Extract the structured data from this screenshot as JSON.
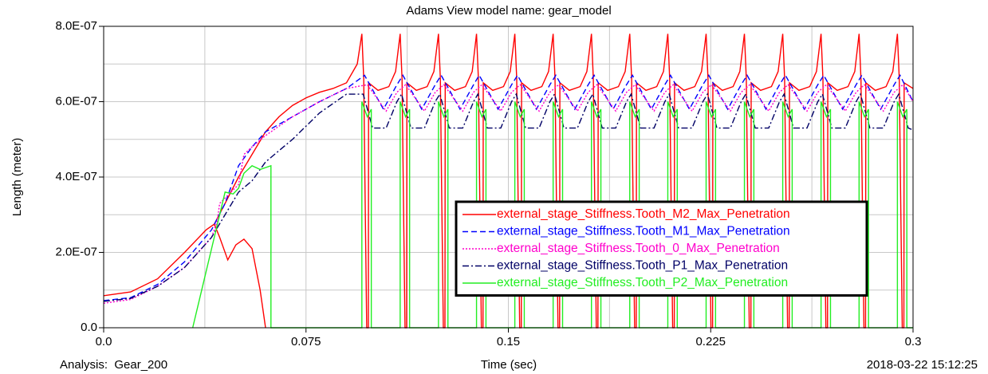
{
  "chart_data": {
    "type": "line",
    "title": "Adams View model name: gear_model",
    "ylabel": "Length (meter)",
    "xlabel": "Time (sec)",
    "footer_left": "Analysis:  Gear_200",
    "footer_right": "2018-03-22 15:12:25",
    "xlim": [
      0,
      0.3
    ],
    "ylim": [
      0,
      8e-07
    ],
    "xticks": [
      {
        "value": 0,
        "label": "0.0"
      },
      0.075,
      0.15,
      0.225,
      0.3
    ],
    "yticks": [
      {
        "value": 0,
        "label": "0.0"
      },
      {
        "value": 2e-07,
        "label": "2.0E-07"
      },
      {
        "value": 4e-07,
        "label": "4.0E-07"
      },
      {
        "value": 6e-07,
        "label": "6.0E-07"
      },
      {
        "value": 8e-07,
        "label": "8.0E-07"
      }
    ],
    "xminor": [
      0.0375,
      0.1125,
      0.1875,
      0.2625
    ],
    "yminor": [
      1e-07,
      3e-07,
      5e-07,
      7e-07
    ],
    "grid": true,
    "legend": "center right",
    "series": [
      {
        "name": "external_stage_Stiffness.Tooth_M2_Max_Penetration",
        "color": "#ff0000",
        "style": "solid",
        "x": [
          0.041,
          0.043,
          0.046,
          0.049,
          0.052,
          0.055,
          0.058,
          0.06,
          null,
          0,
          0.01,
          0.02,
          0.03,
          0.038,
          0.041,
          0.045,
          0.05,
          0.055,
          0.06,
          0.065,
          0.07,
          0.075,
          0.08,
          0.085,
          0.09,
          0.094,
          0.0957,
          0.0964,
          0.0969,
          0.0975,
          0.0981,
          0.0982,
          0.1017,
          0.1057,
          0.1082,
          0.1099,
          0.1106,
          0.1111,
          0.1117,
          0.1123,
          0.1124,
          0.1159,
          0.1199,
          0.1224,
          0.1241,
          0.1248,
          0.1253,
          0.1259,
          0.1265,
          0.1266,
          0.1301,
          0.1341,
          0.1366,
          0.1382,
          0.1389,
          0.1394,
          0.14,
          0.1406,
          0.1407,
          0.1442,
          0.1482,
          0.1507,
          0.1524,
          0.1531,
          0.1536,
          0.1542,
          0.1548,
          0.1549,
          0.1584,
          0.1624,
          0.1649,
          0.1666,
          0.1673,
          0.1678,
          0.1684,
          0.169,
          0.1691,
          0.1726,
          0.1766,
          0.1791,
          0.1808,
          0.1815,
          0.182,
          0.1826,
          0.1832,
          0.1833,
          0.1868,
          0.1908,
          0.1933,
          0.195,
          0.1957,
          0.1962,
          0.1968,
          0.1974,
          0.1975,
          0.201,
          0.205,
          0.2075,
          0.2091,
          0.2098,
          0.2103,
          0.2109,
          0.2115,
          0.2116,
          0.2151,
          0.2191,
          0.2216,
          0.2233,
          0.224,
          0.2245,
          0.2251,
          0.2257,
          0.2258,
          0.2293,
          0.2333,
          0.2358,
          0.2375,
          0.2382,
          0.2387,
          0.2393,
          0.2399,
          0.24,
          0.2435,
          0.2475,
          0.25,
          0.2517,
          0.2524,
          0.2529,
          0.2535,
          0.2541,
          0.2542,
          0.2577,
          0.2617,
          0.2642,
          0.2659,
          0.2666,
          0.2671,
          0.2677,
          0.2683,
          0.2684,
          0.2719,
          0.2759,
          0.2784,
          0.28,
          0.2807,
          0.2812,
          0.2818,
          0.2824,
          0.2825,
          0.286,
          0.29,
          0.2925,
          0.2942,
          0.2949,
          0.2954,
          0.296,
          0.2966,
          0.2967,
          0.3
        ],
        "values": [
          2.75e-07,
          2.4e-07,
          1.8e-07,
          2.2e-07,
          2.35e-07,
          2.1e-07,
          1e-07,
          0,
          null,
          8.5e-08,
          9.5e-08,
          1.3e-07,
          2e-07,
          2.6e-07,
          2.75e-07,
          3.3e-07,
          4e-07,
          4.6e-07,
          5.2e-07,
          5.6e-07,
          5.9e-07,
          6.1e-07,
          6.25e-07,
          6.35e-07,
          6.5e-07,
          7e-07,
          7.8e-07,
          6.6e-07,
          3.5e-07,
          0,
          0,
          6.5e-07,
          6.3e-07,
          6.4e-07,
          6.8e-07,
          7.8e-07,
          6.6e-07,
          3.5e-07,
          0,
          0,
          6.5e-07,
          6.3e-07,
          6.4e-07,
          6.8e-07,
          7.8e-07,
          6.6e-07,
          3.5e-07,
          0,
          0,
          6.5e-07,
          6.3e-07,
          6.4e-07,
          6.8e-07,
          7.8e-07,
          6.6e-07,
          3.5e-07,
          0,
          0,
          6.5e-07,
          6.3e-07,
          6.4e-07,
          6.8e-07,
          7.8e-07,
          6.6e-07,
          3.5e-07,
          0,
          0,
          6.5e-07,
          6.3e-07,
          6.4e-07,
          6.8e-07,
          7.8e-07,
          6.6e-07,
          3.5e-07,
          0,
          0,
          6.5e-07,
          6.3e-07,
          6.4e-07,
          6.8e-07,
          7.8e-07,
          6.6e-07,
          3.5e-07,
          0,
          0,
          6.5e-07,
          6.3e-07,
          6.4e-07,
          6.8e-07,
          7.8e-07,
          6.6e-07,
          3.5e-07,
          0,
          0,
          6.5e-07,
          6.3e-07,
          6.4e-07,
          6.8e-07,
          7.8e-07,
          6.6e-07,
          3.5e-07,
          0,
          0,
          6.5e-07,
          6.3e-07,
          6.4e-07,
          6.8e-07,
          7.8e-07,
          6.6e-07,
          3.5e-07,
          0,
          0,
          6.5e-07,
          6.3e-07,
          6.4e-07,
          6.8e-07,
          7.8e-07,
          6.6e-07,
          3.5e-07,
          0,
          0,
          6.5e-07,
          6.3e-07,
          6.4e-07,
          6.8e-07,
          7.8e-07,
          6.6e-07,
          3.5e-07,
          0,
          0,
          6.5e-07,
          6.3e-07,
          6.4e-07,
          6.8e-07,
          7.8e-07,
          6.6e-07,
          3.5e-07,
          0,
          0,
          6.5e-07,
          6.3e-07,
          6.4e-07,
          6.8e-07,
          7.8e-07,
          6.6e-07,
          3.5e-07,
          0,
          0,
          6.5e-07,
          6.3e-07,
          6.4e-07,
          6.8e-07,
          7.8e-07,
          6.6e-07,
          3.5e-07,
          0,
          0,
          6.5e-07,
          6.35e-07
        ]
      },
      {
        "name": "external_stage_Stiffness.Tooth_M1_Max_Penetration",
        "color": "#0000ff",
        "style": "dashed",
        "x": [
          0,
          0.01,
          0.02,
          0.03,
          0.04,
          0.045,
          0.05,
          0.055,
          0.06,
          0.07,
          0.08,
          0.09,
          0.0967,
          0.1037,
          0.1087,
          0.1109,
          0.1179,
          0.1229,
          0.1251,
          0.1321,
          0.1371,
          0.1392,
          0.1462,
          0.1512,
          0.1534,
          0.1604,
          0.1654,
          0.1676,
          0.1746,
          0.1796,
          0.1818,
          0.1888,
          0.1938,
          0.196,
          0.203,
          0.208,
          0.2101,
          0.2171,
          0.2221,
          0.2243,
          0.2313,
          0.2363,
          0.2385,
          0.2455,
          0.2505,
          0.2527,
          0.2597,
          0.2647,
          0.2669,
          0.2739,
          0.2789,
          0.281,
          0.288,
          0.293,
          0.2952,
          0.3
        ],
        "values": [
          7.2e-08,
          8e-08,
          1.15e-07,
          1.75e-07,
          2.6e-07,
          3.3e-07,
          4.3e-07,
          4.8e-07,
          5.2e-07,
          5.6e-07,
          6e-07,
          6.35e-07,
          6.7e-07,
          5.8e-07,
          6.45e-07,
          6.7e-07,
          5.8e-07,
          6.45e-07,
          6.7e-07,
          5.8e-07,
          6.45e-07,
          6.7e-07,
          5.8e-07,
          6.45e-07,
          6.7e-07,
          5.8e-07,
          6.45e-07,
          6.7e-07,
          5.8e-07,
          6.45e-07,
          6.7e-07,
          5.8e-07,
          6.45e-07,
          6.7e-07,
          5.8e-07,
          6.45e-07,
          6.7e-07,
          5.8e-07,
          6.45e-07,
          6.7e-07,
          5.8e-07,
          6.45e-07,
          6.7e-07,
          5.8e-07,
          6.45e-07,
          6.7e-07,
          5.8e-07,
          6.45e-07,
          6.7e-07,
          5.8e-07,
          6.45e-07,
          6.7e-07,
          5.8e-07,
          6.45e-07,
          6.7e-07,
          6e-07
        ]
      },
      {
        "name": "external_stage_Stiffness.Tooth_0_Max_Penetration",
        "color": "#ff00cc",
        "style": "dotted",
        "x": [
          0,
          0.01,
          0.02,
          0.03,
          0.04,
          0.042,
          0.043,
          0.05,
          0.052,
          0.055,
          0.06,
          0.07,
          0.08,
          0.09,
          0.0977,
          0.1047,
          0.1087,
          0.1119,
          0.1189,
          0.1229,
          0.1261,
          0.1331,
          0.1371,
          0.1402,
          0.1472,
          0.1512,
          0.1544,
          0.1614,
          0.1654,
          0.1686,
          0.1756,
          0.1796,
          0.1828,
          0.1898,
          0.1938,
          0.197,
          0.204,
          0.208,
          0.2111,
          0.2181,
          0.2221,
          0.2253,
          0.2323,
          0.2363,
          0.2395,
          0.2465,
          0.2505,
          0.2537,
          0.2607,
          0.2647,
          0.2679,
          0.2749,
          0.2789,
          0.282,
          0.289,
          0.293,
          0.2962,
          0.3
        ],
        "values": [
          6.5e-08,
          7.5e-08,
          1.1e-07,
          1.6e-07,
          2.4e-07,
          2.8e-07,
          3.3e-07,
          3.8e-07,
          4.6e-07,
          4.8e-07,
          5.1e-07,
          5.6e-07,
          6e-07,
          6.35e-07,
          6.45e-07,
          5.75e-07,
          6.25e-07,
          6.45e-07,
          5.75e-07,
          6.25e-07,
          6.45e-07,
          5.75e-07,
          6.25e-07,
          6.45e-07,
          5.75e-07,
          6.25e-07,
          6.45e-07,
          5.75e-07,
          6.25e-07,
          6.45e-07,
          5.75e-07,
          6.25e-07,
          6.45e-07,
          5.75e-07,
          6.25e-07,
          6.45e-07,
          5.75e-07,
          6.25e-07,
          6.45e-07,
          5.75e-07,
          6.25e-07,
          6.45e-07,
          5.75e-07,
          6.25e-07,
          6.45e-07,
          5.75e-07,
          6.25e-07,
          6.45e-07,
          5.75e-07,
          6.25e-07,
          6.45e-07,
          5.75e-07,
          6.25e-07,
          6.45e-07,
          5.75e-07,
          6.25e-07,
          6.45e-07,
          6e-07
        ]
      },
      {
        "name": "external_stage_Stiffness.Tooth_P1_Max_Penetration",
        "color": "#000066",
        "style": "dashdot",
        "x": [
          0,
          0.01,
          0.02,
          0.03,
          0.04,
          0.045,
          0.05,
          0.055,
          0.06,
          0.07,
          0.08,
          0.09,
          0.0962,
          0.0997,
          0.1047,
          0.1087,
          0.1104,
          0.1139,
          0.1189,
          0.1229,
          0.1246,
          0.1281,
          0.1331,
          0.1371,
          0.1387,
          0.1422,
          0.1472,
          0.1512,
          0.1529,
          0.1564,
          0.1614,
          0.1654,
          0.1671,
          0.1706,
          0.1756,
          0.1796,
          0.1813,
          0.1848,
          0.1898,
          0.1938,
          0.1955,
          0.199,
          0.204,
          0.208,
          0.2096,
          0.2131,
          0.2181,
          0.2221,
          0.2238,
          0.2273,
          0.2323,
          0.2363,
          0.238,
          0.2415,
          0.2465,
          0.2505,
          0.2522,
          0.2557,
          0.2607,
          0.2647,
          0.2664,
          0.2699,
          0.2749,
          0.2789,
          0.2805,
          0.284,
          0.289,
          0.293,
          0.2947,
          0.2982,
          0.3
        ],
        "values": [
          7e-08,
          7.8e-08,
          1.1e-07,
          1.6e-07,
          2.4e-07,
          3e-07,
          3.6e-07,
          3.9e-07,
          4.4e-07,
          5e-07,
          5.7e-07,
          6.2e-07,
          6.2e-07,
          5.3e-07,
          5.3e-07,
          6e-07,
          6.2e-07,
          5.3e-07,
          5.3e-07,
          6e-07,
          6.2e-07,
          5.3e-07,
          5.3e-07,
          6e-07,
          6.2e-07,
          5.3e-07,
          5.3e-07,
          6e-07,
          6.2e-07,
          5.3e-07,
          5.3e-07,
          6e-07,
          6.2e-07,
          5.3e-07,
          5.3e-07,
          6e-07,
          6.2e-07,
          5.3e-07,
          5.3e-07,
          6e-07,
          6.2e-07,
          5.3e-07,
          5.3e-07,
          6e-07,
          6.2e-07,
          5.3e-07,
          5.3e-07,
          6e-07,
          6.2e-07,
          5.3e-07,
          5.3e-07,
          6e-07,
          6.2e-07,
          5.3e-07,
          5.3e-07,
          6e-07,
          6.2e-07,
          5.3e-07,
          5.3e-07,
          6e-07,
          6.2e-07,
          5.3e-07,
          5.3e-07,
          6e-07,
          6.2e-07,
          5.3e-07,
          5.3e-07,
          6e-07,
          6.2e-07,
          5.3e-07,
          5.25e-07
        ]
      },
      {
        "name": "external_stage_Stiffness.Tooth_P2_Max_Penetration",
        "color": "#22ee22",
        "style": "solid",
        "x": [
          0.033,
          0.045,
          0.048,
          0.05,
          0.052,
          0.055,
          0.058,
          0.062,
          0.062,
          0.0957,
          0.0957,
          0.0977,
          0.0992,
          0.0992,
          0.1099,
          0.1099,
          0.1119,
          0.1134,
          0.1134,
          0.1241,
          0.1241,
          0.1261,
          0.1276,
          0.1276,
          0.1382,
          0.1382,
          0.1402,
          0.1417,
          0.1417,
          0.1524,
          0.1524,
          0.1544,
          0.1559,
          0.1559,
          0.1666,
          0.1666,
          0.1686,
          0.1701,
          0.1701,
          0.1808,
          0.1808,
          0.1828,
          0.1843,
          0.1843,
          0.195,
          0.195,
          0.197,
          0.1985,
          0.1985,
          0.2091,
          0.2091,
          0.2111,
          0.2126,
          0.2126,
          0.2233,
          0.2233,
          0.2253,
          0.2268,
          0.2268,
          0.2375,
          0.2375,
          0.2395,
          0.241,
          0.241,
          0.2517,
          0.2517,
          0.2537,
          0.2552,
          0.2552,
          0.2659,
          0.2659,
          0.2679,
          0.2694,
          0.2694,
          0.28,
          0.28,
          0.282,
          0.2835,
          0.2835,
          0.2942,
          0.2942,
          0.2962,
          0.2977,
          0.2977,
          0.3
        ],
        "values": [
          0,
          3.6e-07,
          3.55e-07,
          3.7e-07,
          4.1e-07,
          4.3e-07,
          4.2e-07,
          4.3e-07,
          0,
          0,
          6e-07,
          5.6e-07,
          5.8e-07,
          0,
          0,
          6e-07,
          5.6e-07,
          5.8e-07,
          0,
          0,
          6e-07,
          5.6e-07,
          5.8e-07,
          0,
          0,
          6e-07,
          5.6e-07,
          5.8e-07,
          0,
          0,
          6e-07,
          5.6e-07,
          5.8e-07,
          0,
          0,
          6e-07,
          5.6e-07,
          5.8e-07,
          0,
          0,
          6e-07,
          5.6e-07,
          5.8e-07,
          0,
          0,
          6e-07,
          5.6e-07,
          5.8e-07,
          0,
          0,
          6e-07,
          5.6e-07,
          5.8e-07,
          0,
          0,
          6e-07,
          5.6e-07,
          5.8e-07,
          0,
          0,
          6e-07,
          5.6e-07,
          5.8e-07,
          0,
          0,
          6e-07,
          5.6e-07,
          5.8e-07,
          0,
          0,
          6e-07,
          5.6e-07,
          5.8e-07,
          0,
          0,
          6e-07,
          5.6e-07,
          5.8e-07,
          0,
          0,
          6e-07,
          5.6e-07,
          5.8e-07,
          0,
          0
        ]
      }
    ]
  }
}
